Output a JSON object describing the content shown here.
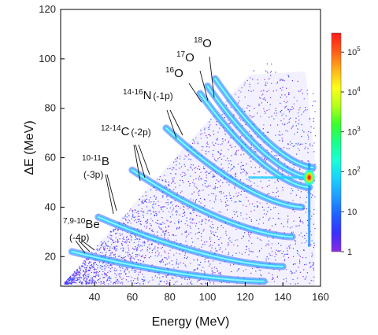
{
  "chart_data": {
    "type": "heatmap",
    "xlabel": "Energy (MeV)",
    "ylabel": "ΔE (MeV)",
    "xlim": [
      22,
      160
    ],
    "ylim": [
      8,
      120
    ],
    "x_ticks": [
      40,
      60,
      80,
      100,
      120,
      140,
      160
    ],
    "y_ticks": [
      20,
      40,
      60,
      80,
      100,
      120
    ],
    "grid": false,
    "scale": "log",
    "colorbar": {
      "ticks": [
        "1",
        "10",
        "10^2",
        "10^3",
        "10^4",
        "10^5"
      ],
      "min": 1,
      "max": 300000,
      "colors": [
        "#8a2be2",
        "#3a2fff",
        "#1f5fff",
        "#1f9bff",
        "#19d0ff",
        "#19ffd8",
        "#19ff8a",
        "#3aff2a",
        "#b4ff19",
        "#ffff19",
        "#ffb019",
        "#ff5a19",
        "#ff1919"
      ]
    },
    "bands": [
      {
        "label": "7,9-10Be (-4p)",
        "e0": 28,
        "de0": 22,
        "e1": 130,
        "de1": 10
      },
      {
        "label": "10-11B (-3p)",
        "e0": 42,
        "de0": 36,
        "e1": 140,
        "de1": 16
      },
      {
        "label": "12-14C (-2p)",
        "e0": 60,
        "de0": 55,
        "e1": 145,
        "de1": 28
      },
      {
        "label": "14-16N (-1p)",
        "e0": 78,
        "de0": 72,
        "e1": 150,
        "de1": 40
      },
      {
        "label": "16O",
        "e0": 96,
        "de0": 86,
        "e1": 154,
        "de1": 48
      },
      {
        "label": "17O",
        "e0": 100,
        "de0": 89,
        "e1": 154,
        "de1": 52
      },
      {
        "label": "18O",
        "e0": 104,
        "de0": 92,
        "e1": 156,
        "de1": 56
      }
    ],
    "hotspot": {
      "e": 154,
      "de": 52,
      "level": "10^5"
    },
    "annotations": [
      {
        "id": "be",
        "pre": "7,9-10",
        "main": "Be",
        "sub": "(-4p)"
      },
      {
        "id": "b",
        "pre": "10-11",
        "main": "B",
        "sub": "(-3p)"
      },
      {
        "id": "c",
        "pre": "12-14",
        "main": "C",
        "sub": "(-2p)"
      },
      {
        "id": "n",
        "pre": "14-16",
        "main": "N",
        "sub": "(-1p)"
      },
      {
        "id": "o16",
        "pre": "16",
        "main": "O",
        "sub": ""
      },
      {
        "id": "o17",
        "pre": "17",
        "main": "O",
        "sub": ""
      },
      {
        "id": "o18",
        "pre": "18",
        "main": "O",
        "sub": ""
      }
    ]
  }
}
